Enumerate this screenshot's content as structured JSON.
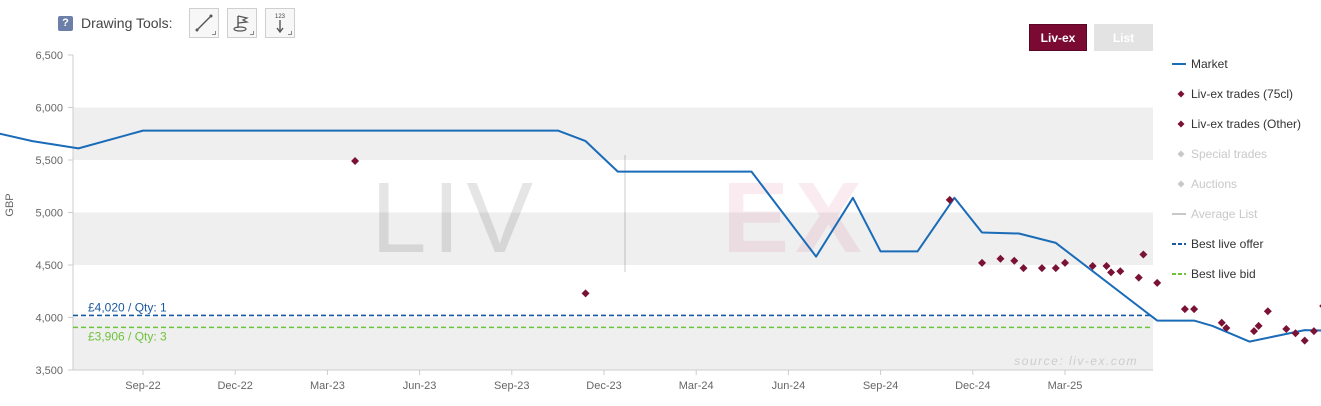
{
  "toolbar": {
    "help_label": "?",
    "title": "Drawing Tools",
    "tools": [
      {
        "name": "line-tool",
        "icon": "diagonal-line-icon"
      },
      {
        "name": "flag-tool",
        "icon": "flag-icon"
      },
      {
        "name": "measure-tool",
        "icon": "measure-icon",
        "label": "123"
      }
    ]
  },
  "mode_buttons": [
    {
      "label": "Liv-ex",
      "active": true
    },
    {
      "label": "List",
      "active": false
    }
  ],
  "watermark": {
    "left": "LIV",
    "right": "EX",
    "source": "source: liv-ex.com"
  },
  "colors": {
    "market": "#1a6bb8",
    "trades": "#7a1235",
    "offer": "#1a5aa0",
    "bid": "#6ec23c",
    "disabled": "#c8c8c8",
    "band": "#efefef"
  },
  "chart_data": {
    "type": "line",
    "title": "",
    "xlabel": "",
    "ylabel": "GBP",
    "ylim": [
      3500,
      6500
    ],
    "yticks": [
      "3,500",
      "4,000",
      "4,500",
      "5,000",
      "5,500",
      "6,000",
      "6,500"
    ],
    "xticks": [
      "Sep-22",
      "Dec-22",
      "Mar-23",
      "Jun-23",
      "Sep-23",
      "Dec-23",
      "Mar-24",
      "Jun-24",
      "Sep-24",
      "Dec-24",
      "Mar-25"
    ],
    "grid": "alternating-bands",
    "legend_position": "right",
    "series": [
      {
        "name": "Market",
        "kind": "line",
        "points": [
          [
            -1.7,
            5780
          ],
          [
            -1.2,
            5680
          ],
          [
            -0.7,
            5610
          ],
          [
            0.0,
            5780
          ],
          [
            1.0,
            5780
          ],
          [
            2.0,
            5780
          ],
          [
            3.0,
            5780
          ],
          [
            4.0,
            5780
          ],
          [
            4.5,
            5780
          ],
          [
            4.8,
            5680
          ],
          [
            5.15,
            5390
          ],
          [
            6.0,
            5390
          ],
          [
            6.6,
            5390
          ],
          [
            7.3,
            4580
          ],
          [
            7.7,
            5140
          ],
          [
            8.0,
            4630
          ],
          [
            8.4,
            4630
          ],
          [
            8.8,
            5140
          ],
          [
            9.1,
            4810
          ],
          [
            9.5,
            4800
          ],
          [
            9.9,
            4710
          ],
          [
            11.0,
            3970
          ],
          [
            11.4,
            3970
          ],
          [
            11.6,
            3920
          ],
          [
            12.0,
            3770
          ],
          [
            12.6,
            3880
          ],
          [
            13.0,
            3870
          ],
          [
            13.5,
            3890
          ],
          [
            14.0,
            3880
          ],
          [
            14.5,
            3960
          ],
          [
            14.85,
            3990
          ]
        ]
      },
      {
        "name": "Liv-ex trades (75cl)",
        "kind": "scatter",
        "points": [
          [
            -1.8,
            5990
          ],
          [
            2.3,
            5490
          ],
          [
            4.8,
            4230
          ],
          [
            8.75,
            5120
          ],
          [
            9.1,
            4520
          ],
          [
            9.3,
            4560
          ],
          [
            9.45,
            4540
          ],
          [
            9.55,
            4470
          ],
          [
            9.75,
            4470
          ],
          [
            9.9,
            4470
          ],
          [
            10.0,
            4520
          ],
          [
            10.3,
            4490
          ],
          [
            10.45,
            4490
          ],
          [
            10.5,
            4430
          ],
          [
            10.6,
            4440
          ],
          [
            10.8,
            4380
          ],
          [
            10.85,
            4600
          ],
          [
            11.0,
            4330
          ],
          [
            11.3,
            4080
          ],
          [
            11.4,
            4080
          ],
          [
            11.7,
            3950
          ],
          [
            11.75,
            3900
          ],
          [
            12.1,
            3920
          ],
          [
            12.2,
            4060
          ],
          [
            12.4,
            3890
          ],
          [
            12.6,
            3780
          ],
          [
            12.7,
            3870
          ],
          [
            12.8,
            4110
          ],
          [
            13.0,
            4080
          ],
          [
            13.2,
            3780
          ],
          [
            13.4,
            3970
          ],
          [
            13.6,
            3980
          ],
          [
            13.7,
            3690
          ],
          [
            13.9,
            3860
          ],
          [
            14.0,
            3870
          ],
          [
            14.1,
            3780
          ],
          [
            14.25,
            3900
          ],
          [
            14.4,
            3950
          ],
          [
            14.5,
            4060
          ],
          [
            14.7,
            3910
          ],
          [
            14.8,
            3900
          ],
          [
            15.0,
            3930
          ],
          [
            15.2,
            4050
          ],
          [
            15.3,
            4050
          ],
          [
            15.6,
            3910
          ],
          [
            15.75,
            3860
          ]
        ]
      },
      {
        "name": "Liv-ex trades (Other)",
        "kind": "scatter",
        "points": [
          [
            12.05,
            3870
          ],
          [
            12.5,
            3850
          ],
          [
            13.25,
            3920
          ],
          [
            13.75,
            3750
          ],
          [
            13.85,
            3830
          ],
          [
            14.3,
            3930
          ],
          [
            14.45,
            3910
          ],
          [
            14.9,
            3880
          ],
          [
            15.1,
            3890
          ],
          [
            15.4,
            3890
          ]
        ]
      },
      {
        "name": "Special trades",
        "kind": "scatter",
        "enabled": false,
        "points": []
      },
      {
        "name": "Auctions",
        "kind": "scatter",
        "enabled": false,
        "points": []
      },
      {
        "name": "Average List",
        "kind": "line",
        "enabled": false,
        "points": []
      },
      {
        "name": "Best live offer",
        "kind": "reference",
        "value": 4020,
        "label": "£4,020 / Qty: 1"
      },
      {
        "name": "Best live bid",
        "kind": "reference",
        "value": 3906,
        "label": "£3,906 / Qty: 3"
      }
    ]
  }
}
